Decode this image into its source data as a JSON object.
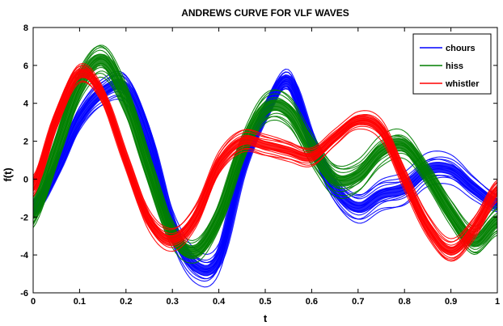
{
  "chart_data": {
    "type": "line",
    "title": "ANDREWS CURVE FOR VLF WAVES",
    "xlabel": "t",
    "ylabel": "f(t)",
    "xlim": [
      0,
      1
    ],
    "ylim": [
      -6,
      8
    ],
    "xticks": [
      "0",
      "0.1",
      "0.2",
      "0.3",
      "0.4",
      "0.5",
      "0.6",
      "0.7",
      "0.8",
      "0.9",
      "1"
    ],
    "yticks": [
      "-6",
      "-4",
      "-2",
      "0",
      "2",
      "4",
      "6",
      "8"
    ],
    "grid": false,
    "legend_position": "top-right",
    "series": [
      {
        "name": "chours",
        "color": "#0000ff",
        "x": [
          0,
          0.05,
          0.1,
          0.15,
          0.2,
          0.25,
          0.3,
          0.35,
          0.4,
          0.45,
          0.5,
          0.55,
          0.6,
          0.65,
          0.7,
          0.75,
          0.8,
          0.85,
          0.9,
          0.95,
          1
        ],
        "y": [
          -1.6,
          0.5,
          3.2,
          4.6,
          4.8,
          2.0,
          -2.5,
          -4.6,
          -4.2,
          0.5,
          3.5,
          5.2,
          2.0,
          -0.5,
          -1.5,
          -0.8,
          -0.5,
          0.5,
          0.5,
          -0.5,
          -1.3
        ],
        "spread": 0.9
      },
      {
        "name": "hiss",
        "color": "#007f00",
        "x": [
          0,
          0.05,
          0.1,
          0.15,
          0.2,
          0.25,
          0.3,
          0.35,
          0.4,
          0.45,
          0.5,
          0.55,
          0.6,
          0.65,
          0.7,
          0.75,
          0.8,
          0.85,
          0.9,
          0.95,
          1
        ],
        "y": [
          -1.8,
          1.5,
          5.0,
          6.3,
          4.2,
          0.5,
          -2.9,
          -3.8,
          -2.0,
          1.5,
          3.7,
          3.6,
          1.6,
          0.0,
          0.2,
          1.5,
          1.8,
          0.2,
          -1.8,
          -3.3,
          -2.2
        ],
        "spread": 1.0
      },
      {
        "name": "whistler",
        "color": "#ff0000",
        "x": [
          0,
          0.05,
          0.1,
          0.15,
          0.2,
          0.25,
          0.3,
          0.35,
          0.4,
          0.45,
          0.5,
          0.55,
          0.6,
          0.65,
          0.7,
          0.75,
          0.8,
          0.85,
          0.9,
          0.95,
          1
        ],
        "y": [
          -0.4,
          3.2,
          5.6,
          4.4,
          1.0,
          -2.2,
          -3.2,
          -2.0,
          0.8,
          2.0,
          1.8,
          1.5,
          1.2,
          2.2,
          3.1,
          2.6,
          0.0,
          -2.5,
          -3.8,
          -2.6,
          -0.6
        ],
        "spread": 0.7
      }
    ]
  }
}
